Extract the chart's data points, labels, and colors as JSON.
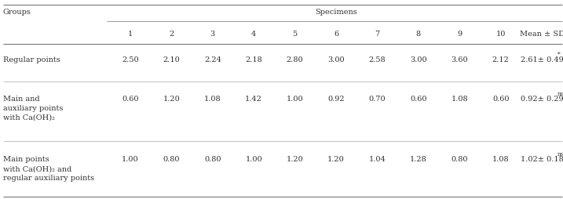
{
  "col_header_sub": [
    "1",
    "2",
    "3",
    "4",
    "5",
    "6",
    "7",
    "8",
    "9",
    "10",
    "Mean ± SD"
  ],
  "row_labels": [
    "Regular points",
    "Main and\nauxiliary points\nwith Ca(OH)₂",
    "Main points\nwith Ca(OH)₂ and\nregular auxiliary points"
  ],
  "data": [
    [
      "2.50",
      "2.10",
      "2.24",
      "2.18",
      "2.80",
      "3.00",
      "2.58",
      "3.00",
      "3.60",
      "2.12"
    ],
    [
      "0.60",
      "1.20",
      "1.08",
      "1.42",
      "1.00",
      "0.92",
      "0.70",
      "0.60",
      "1.08",
      "0.60"
    ],
    [
      "1.00",
      "0.80",
      "0.80",
      "1.00",
      "1.20",
      "1.20",
      "1.04",
      "1.28",
      "0.80",
      "1.08"
    ]
  ],
  "mean_base": [
    "2.61± 0.49",
    "0.92± 0.29",
    "1.02± 0.18"
  ],
  "mean_sup": [
    "*",
    "ns",
    "ns"
  ],
  "bg_color": "#ffffff",
  "text_color": "#333333",
  "line_color": "#999999",
  "font_size": 7.0
}
